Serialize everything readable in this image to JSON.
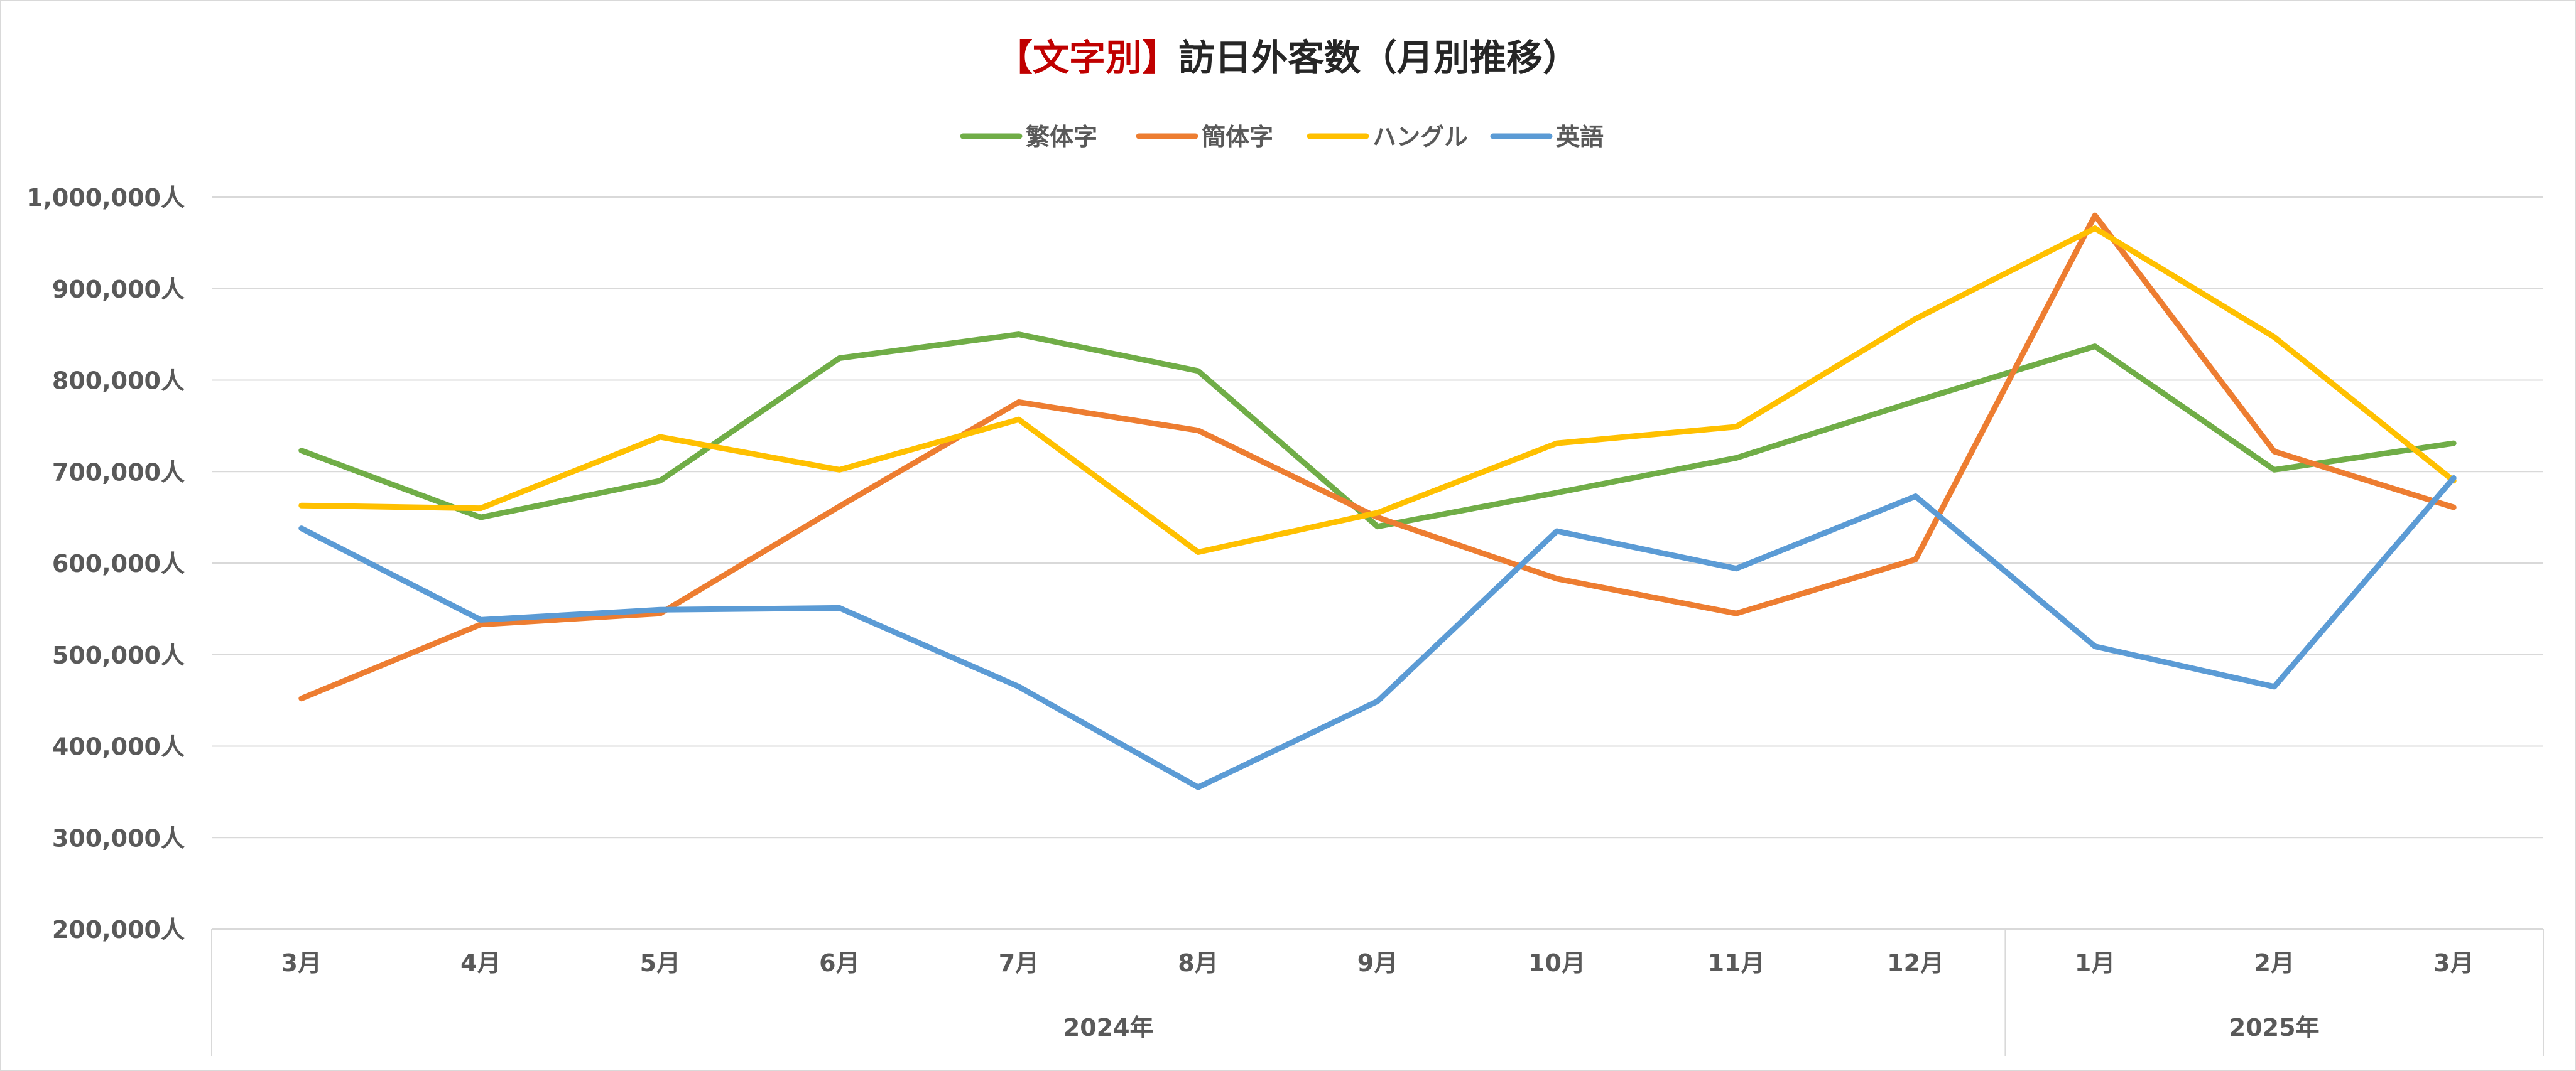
{
  "chart_data": {
    "type": "line",
    "title_prefix": "【文字別】",
    "title_main": "訪日外客数（月別推移）",
    "colors": {
      "title_prefix": "#c00000",
      "title_main": "#262626",
      "grid": "#d9d9d9",
      "axis_text": "#595959"
    },
    "legend_position": "top",
    "grid": true,
    "ylim": [
      200000,
      1000000
    ],
    "y_ticks": [
      "200,000人",
      "300,000人",
      "400,000人",
      "500,000人",
      "600,000人",
      "700,000人",
      "800,000人",
      "900,000人",
      "1,000,000人"
    ],
    "categories": [
      "3月",
      "4月",
      "5月",
      "6月",
      "7月",
      "8月",
      "9月",
      "10月",
      "11月",
      "12月",
      "1月",
      "2月",
      "3月"
    ],
    "year_groups": [
      {
        "label": "2024年",
        "count": 10
      },
      {
        "label": "2025年",
        "count": 3
      }
    ],
    "series": [
      {
        "name": "繁体字",
        "color": "#70ad47",
        "values": [
          723000,
          650000,
          690000,
          824000,
          850000,
          810000,
          640000,
          677000,
          715000,
          777000,
          837000,
          702000,
          731000
        ]
      },
      {
        "name": "簡体字",
        "color": "#ed7d31",
        "values": [
          452000,
          533000,
          545000,
          662000,
          776000,
          745000,
          650000,
          583000,
          545000,
          604000,
          980000,
          722000,
          661000
        ]
      },
      {
        "name": "ハングル",
        "color": "#ffc000",
        "values": [
          663000,
          660000,
          738000,
          702000,
          757000,
          612000,
          655000,
          731000,
          749000,
          867000,
          966000,
          847000,
          690000
        ]
      },
      {
        "name": "英語",
        "color": "#5b9bd5",
        "values": [
          638000,
          538000,
          549000,
          551000,
          465000,
          355000,
          449000,
          635000,
          594000,
          673000,
          509000,
          465000,
          693000
        ]
      }
    ]
  }
}
